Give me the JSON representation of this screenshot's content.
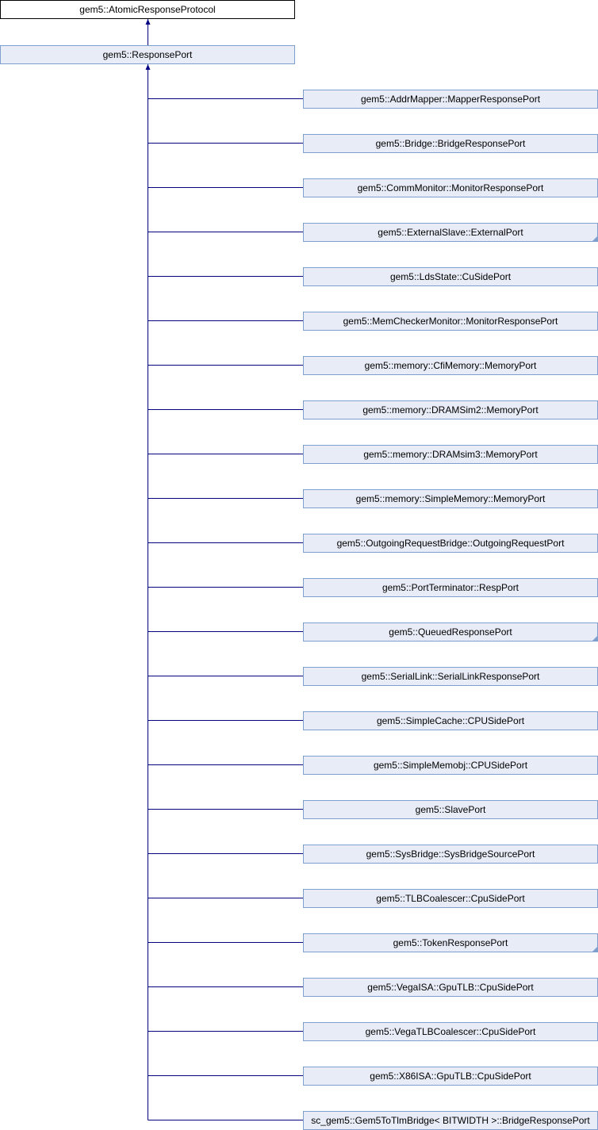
{
  "diagram": {
    "root": {
      "label": "gem5::AtomicResponseProtocol"
    },
    "parent": {
      "label": "gem5::ResponsePort"
    },
    "children": [
      {
        "label": "gem5::AddrMapper::MapperResponsePort",
        "truncated": false
      },
      {
        "label": "gem5::Bridge::BridgeResponsePort",
        "truncated": false
      },
      {
        "label": "gem5::CommMonitor::MonitorResponsePort",
        "truncated": false
      },
      {
        "label": "gem5::ExternalSlave::ExternalPort",
        "truncated": true
      },
      {
        "label": "gem5::LdsState::CuSidePort",
        "truncated": false
      },
      {
        "label": "gem5::MemCheckerMonitor::MonitorResponsePort",
        "truncated": false
      },
      {
        "label": "gem5::memory::CfiMemory::MemoryPort",
        "truncated": false
      },
      {
        "label": "gem5::memory::DRAMSim2::MemoryPort",
        "truncated": false
      },
      {
        "label": "gem5::memory::DRAMsim3::MemoryPort",
        "truncated": false
      },
      {
        "label": "gem5::memory::SimpleMemory::MemoryPort",
        "truncated": false
      },
      {
        "label": "gem5::OutgoingRequestBridge::OutgoingRequestPort",
        "truncated": false
      },
      {
        "label": "gem5::PortTerminator::RespPort",
        "truncated": false
      },
      {
        "label": "gem5::QueuedResponsePort",
        "truncated": true
      },
      {
        "label": "gem5::SerialLink::SerialLinkResponsePort",
        "truncated": false
      },
      {
        "label": "gem5::SimpleCache::CPUSidePort",
        "truncated": false
      },
      {
        "label": "gem5::SimpleMemobj::CPUSidePort",
        "truncated": false
      },
      {
        "label": "gem5::SlavePort",
        "truncated": false
      },
      {
        "label": "gem5::SysBridge::SysBridgeSourcePort",
        "truncated": false
      },
      {
        "label": "gem5::TLBCoalescer::CpuSidePort",
        "truncated": false
      },
      {
        "label": "gem5::TokenResponsePort",
        "truncated": true
      },
      {
        "label": "gem5::VegaISA::GpuTLB::CpuSidePort",
        "truncated": false
      },
      {
        "label": "gem5::VegaTLBCoalescer::CpuSidePort",
        "truncated": false
      },
      {
        "label": "gem5::X86ISA::GpuTLB::CpuSidePort",
        "truncated": false
      },
      {
        "label": "sc_gem5::Gem5ToTlmBridge< BITWIDTH >::BridgeResponsePort",
        "truncated": false
      }
    ],
    "colors": {
      "edge": "#000080",
      "node_fill": "#e8ecf6",
      "node_border": "#7f9fcf",
      "root_border": "#000000"
    }
  }
}
